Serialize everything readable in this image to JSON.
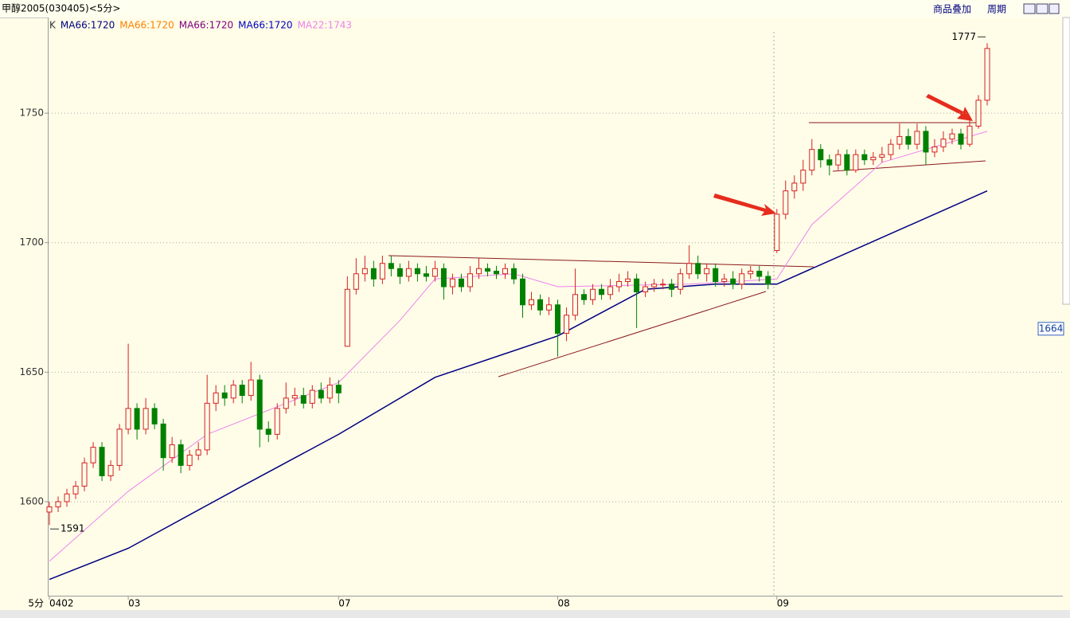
{
  "toolbar": {
    "title": "甲醇2005(030405)<5分>",
    "buttons": [
      "商品叠加",
      "周期"
    ]
  },
  "chart_data": {
    "type": "candlestick",
    "x_label": "5分",
    "legend": [
      {
        "name": "K",
        "color": "#333333"
      },
      {
        "name": "MA66:1720",
        "color": "#000080"
      },
      {
        "name": "MA66:1720",
        "color": "#ff8000"
      },
      {
        "name": "MA66:1720",
        "color": "#800080"
      },
      {
        "name": "MA66:1720",
        "color": "#0000c0"
      },
      {
        "name": "MA22:1743",
        "color": "#ee82ee"
      }
    ],
    "up_color": "#d42020",
    "down_color": "#008000",
    "categories": [
      "0402",
      null,
      null,
      null,
      null,
      null,
      null,
      null,
      null,
      "03",
      null,
      null,
      null,
      null,
      null,
      null,
      null,
      null,
      null,
      null,
      null,
      null,
      null,
      null,
      null,
      null,
      null,
      null,
      null,
      null,
      null,
      null,
      null,
      "07",
      null,
      null,
      null,
      null,
      null,
      null,
      null,
      null,
      null,
      null,
      null,
      null,
      null,
      null,
      null,
      null,
      null,
      null,
      null,
      null,
      null,
      null,
      null,
      null,
      "08",
      null,
      null,
      null,
      null,
      null,
      null,
      null,
      null,
      null,
      null,
      null,
      null,
      null,
      null,
      null,
      null,
      null,
      null,
      null,
      null,
      null,
      null,
      null,
      null,
      "09",
      null,
      null,
      null,
      null,
      null,
      null,
      null,
      null,
      null,
      null,
      null,
      null,
      null,
      null,
      null,
      null,
      null,
      null,
      null,
      null,
      null,
      null,
      null,
      null
    ],
    "open": [
      1596,
      1598,
      1600,
      1603,
      1606,
      1615,
      1621,
      1610,
      1614,
      1628,
      1636,
      1628,
      1636,
      1630,
      1617,
      1622,
      1614,
      1618,
      1620,
      1638,
      1642,
      1640,
      1645,
      1641,
      1647,
      1628,
      1626,
      1636,
      1640,
      1641,
      1638,
      1643,
      1640,
      1645,
      1660,
      1682,
      1688,
      1690,
      1686,
      1692,
      1690,
      1687,
      1690,
      1688,
      1687,
      1690,
      1683,
      1686,
      1683,
      1688,
      1690,
      1689,
      1688,
      1690,
      1686,
      1676,
      1678,
      1674,
      1676,
      1665,
      1672,
      1680,
      1678,
      1682,
      1680,
      1683,
      1685,
      1686,
      1681,
      1683,
      1684,
      1684,
      1682,
      1688,
      1692,
      1688,
      1690,
      1685,
      1686,
      1684,
      1688,
      1689,
      1687,
      1697,
      1711,
      1720,
      1723,
      1728,
      1736,
      1732,
      1730,
      1734,
      1728,
      1734,
      1732,
      1733,
      1734,
      1738,
      1741,
      1738,
      1743,
      1735,
      1737,
      1740,
      1742,
      1738,
      1745,
      1755
    ],
    "high": [
      1600,
      1602,
      1605,
      1608,
      1617,
      1623,
      1623,
      1616,
      1630,
      1661,
      1638,
      1640,
      1638,
      1632,
      1625,
      1624,
      1620,
      1623,
      1649,
      1645,
      1645,
      1647,
      1647,
      1654,
      1649,
      1631,
      1638,
      1646,
      1644,
      1644,
      1645,
      1646,
      1648,
      1647,
      1687,
      1694,
      1695,
      1693,
      1695,
      1695,
      1692,
      1693,
      1692,
      1691,
      1693,
      1692,
      1688,
      1688,
      1691,
      1694,
      1692,
      1691,
      1692,
      1692,
      1688,
      1681,
      1680,
      1679,
      1678,
      1675,
      1690,
      1682,
      1684,
      1684,
      1686,
      1688,
      1689,
      1688,
      1685,
      1686,
      1686,
      1686,
      1690,
      1699,
      1695,
      1692,
      1692,
      1688,
      1689,
      1690,
      1691,
      1691,
      1689,
      1713,
      1724,
      1726,
      1732,
      1740,
      1738,
      1734,
      1736,
      1736,
      1736,
      1736,
      1735,
      1737,
      1740,
      1746,
      1744,
      1746,
      1745,
      1740,
      1743,
      1744,
      1744,
      1748,
      1757,
      1777
    ],
    "low": [
      1591,
      1596,
      1598,
      1601,
      1604,
      1613,
      1608,
      1608,
      1612,
      1626,
      1624,
      1626,
      1628,
      1612,
      1615,
      1611,
      1612,
      1616,
      1618,
      1635,
      1637,
      1638,
      1638,
      1639,
      1621,
      1623,
      1624,
      1634,
      1637,
      1636,
      1636,
      1638,
      1638,
      1638,
      1660,
      1680,
      1685,
      1683,
      1684,
      1687,
      1684,
      1685,
      1685,
      1685,
      1685,
      1678,
      1680,
      1681,
      1681,
      1686,
      1687,
      1686,
      1686,
      1684,
      1671,
      1674,
      1672,
      1672,
      1656,
      1662,
      1670,
      1676,
      1676,
      1678,
      1678,
      1681,
      1683,
      1667,
      1679,
      1681,
      1682,
      1679,
      1680,
      1686,
      1686,
      1685,
      1683,
      1683,
      1682,
      1682,
      1686,
      1685,
      1682,
      1696,
      1709,
      1717,
      1720,
      1726,
      1729,
      1726,
      1728,
      1726,
      1727,
      1730,
      1730,
      1731,
      1732,
      1736,
      1736,
      1736,
      1730,
      1733,
      1735,
      1738,
      1736,
      1737,
      1744,
      1753
    ],
    "close": [
      1598,
      1600,
      1603,
      1606,
      1615,
      1621,
      1610,
      1614,
      1628,
      1636,
      1628,
      1636,
      1630,
      1617,
      1622,
      1614,
      1618,
      1620,
      1638,
      1642,
      1640,
      1645,
      1641,
      1647,
      1628,
      1626,
      1636,
      1640,
      1641,
      1638,
      1643,
      1640,
      1645,
      1642,
      1682,
      1688,
      1690,
      1686,
      1692,
      1690,
      1687,
      1690,
      1688,
      1687,
      1690,
      1683,
      1686,
      1683,
      1688,
      1690,
      1689,
      1688,
      1690,
      1686,
      1676,
      1678,
      1674,
      1676,
      1665,
      1672,
      1680,
      1678,
      1682,
      1680,
      1683,
      1685,
      1686,
      1681,
      1683,
      1684,
      1684,
      1682,
      1688,
      1692,
      1688,
      1690,
      1685,
      1686,
      1684,
      1688,
      1689,
      1687,
      1684,
      1711,
      1720,
      1723,
      1728,
      1736,
      1732,
      1730,
      1734,
      1728,
      1734,
      1732,
      1733,
      1734,
      1738,
      1741,
      1738,
      1743,
      1735,
      1737,
      1740,
      1742,
      1738,
      1745,
      1755,
      1775
    ],
    "ma_lines": [
      {
        "color": "#000080",
        "x": [
          0,
          9,
          22,
          33,
          44,
          58,
          68,
          76,
          83,
          95,
          107
        ],
        "values": [
          1570,
          1582,
          1606,
          1626,
          1648,
          1664,
          1682,
          1684,
          1684,
          1702,
          1720
        ]
      },
      {
        "color": "#ee82ee",
        "x": [
          0,
          9,
          18,
          33,
          40,
          44,
          53,
          58,
          73,
          83,
          87,
          95,
          107
        ],
        "values": [
          1577,
          1604,
          1626,
          1646,
          1670,
          1686,
          1688,
          1683,
          1684,
          1686,
          1707,
          1731,
          1743
        ]
      }
    ],
    "cursor_price": 1664,
    "ylim": [
      1563.7,
      1781.4
    ],
    "yticks": [
      1600,
      1650,
      1700,
      1750
    ],
    "grid": true
  }
}
